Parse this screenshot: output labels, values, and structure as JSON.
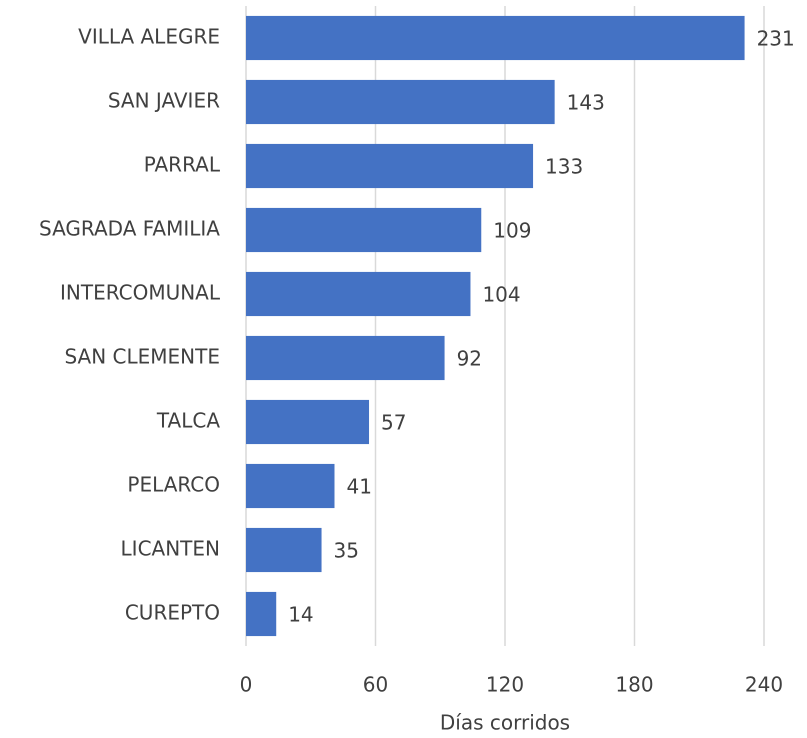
{
  "chart_data": {
    "type": "bar",
    "orientation": "horizontal",
    "categories": [
      "VILLA ALEGRE",
      "SAN JAVIER",
      "PARRAL",
      "SAGRADA FAMILIA",
      "INTERCOMUNAL",
      "SAN CLEMENTE",
      "TALCA",
      "PELARCO",
      "LICANTEN",
      "CUREPTO"
    ],
    "values": [
      231,
      143,
      133,
      109,
      104,
      92,
      57,
      41,
      35,
      14
    ],
    "color": "#4472c4",
    "x_label": "Días corridos",
    "xlim": [
      0,
      240
    ],
    "xticks": [
      0,
      60,
      120,
      180,
      240
    ],
    "grid": true
  }
}
